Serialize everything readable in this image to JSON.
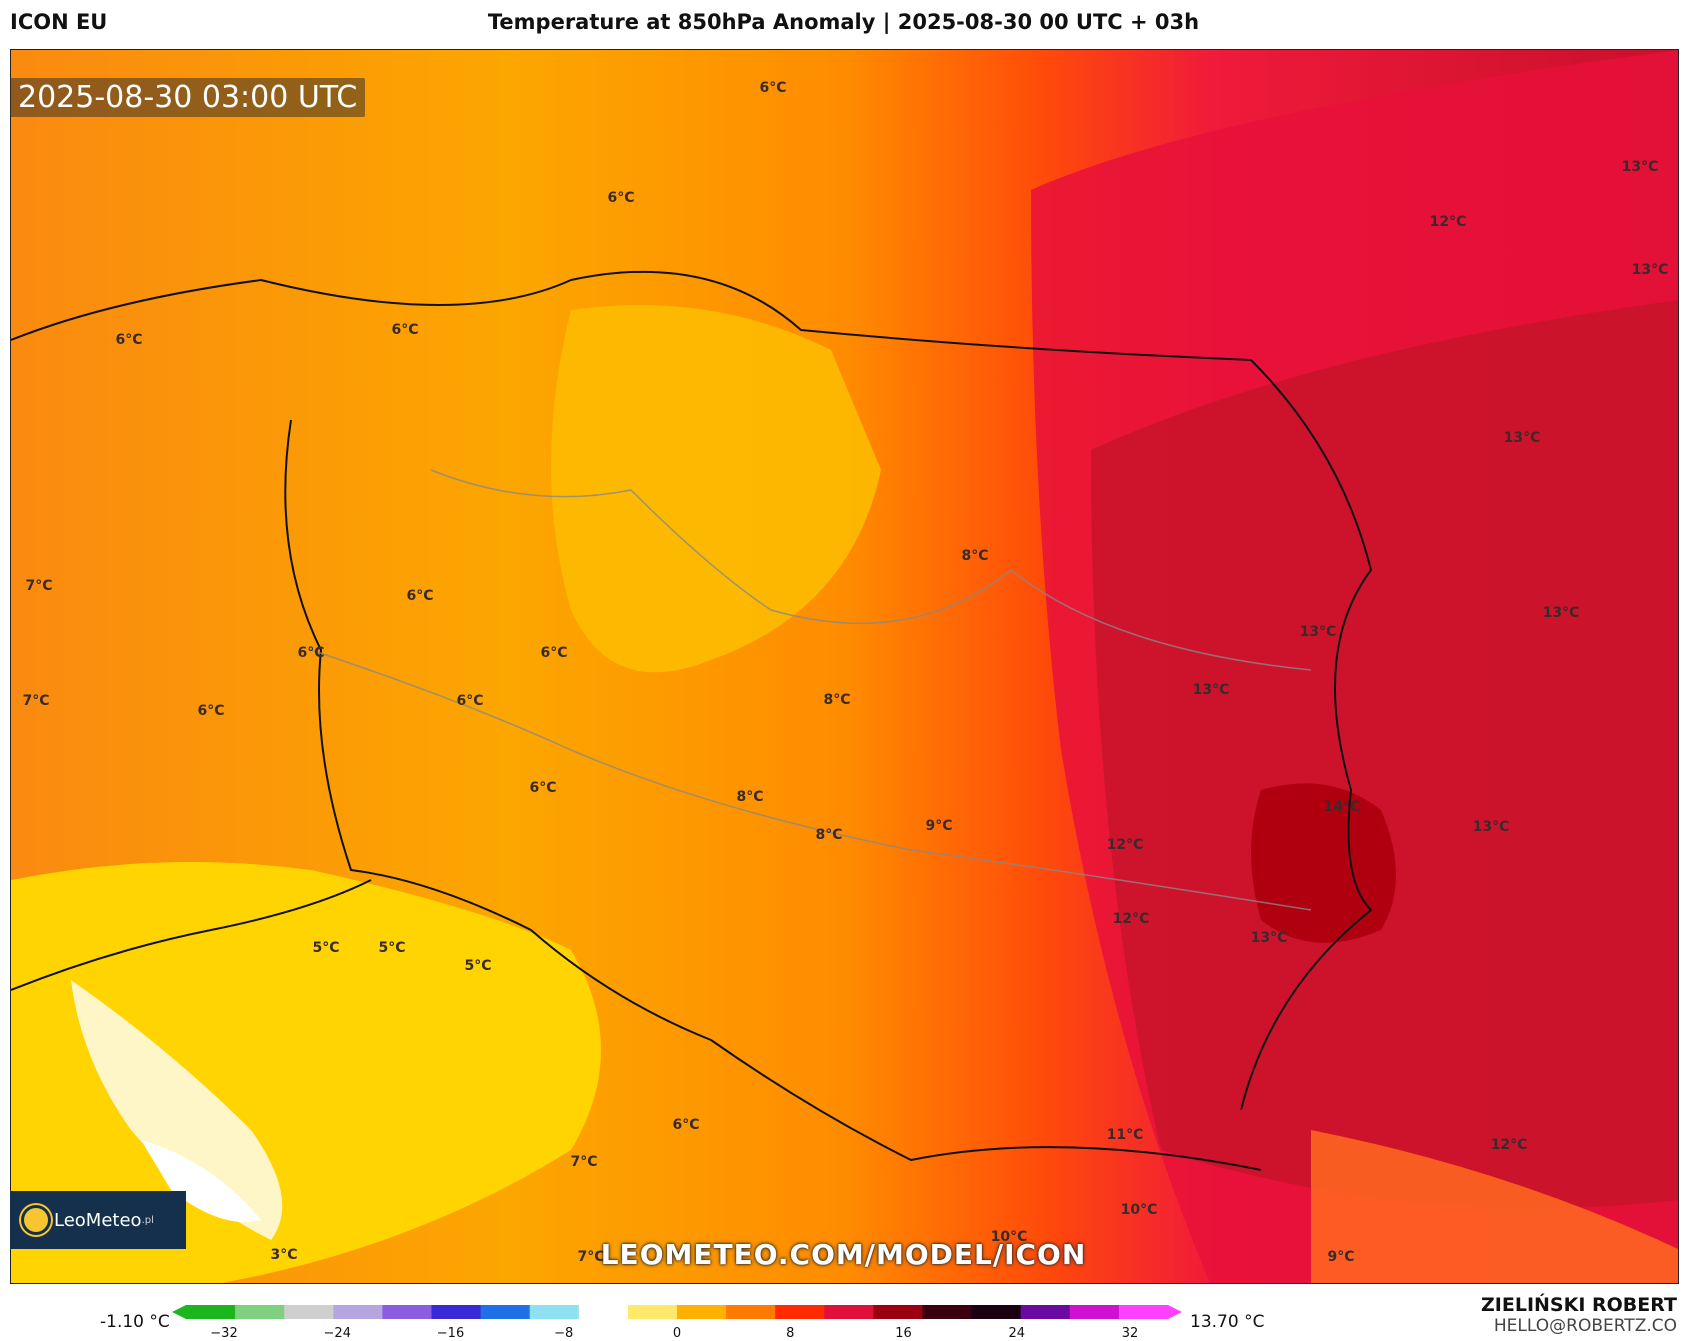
{
  "header": {
    "model": "ICON EU",
    "title": "Temperature at 850hPa Anomaly | 2025-08-30 00 UTC + 03h"
  },
  "map": {
    "timestamp": "2025-08-30 03:00 UTC",
    "watermark": "LEOMETEO.COM/MODEL/ICON",
    "logo_text": "LeoMeteo",
    "logo_suffix": ".pl",
    "labels": [
      "6°C",
      "6°C",
      "6°C",
      "6°C",
      "6°C",
      "6°C",
      "6°C",
      "6°C",
      "6°C",
      "6°C",
      "7°C",
      "7°C",
      "8°C",
      "8°C",
      "8°C",
      "8°C",
      "9°C",
      "12°C",
      "12°C",
      "12°C",
      "13°C",
      "13°C",
      "13°C",
      "13°C",
      "13°C",
      "13°C",
      "13°C",
      "13°C",
      "14°C",
      "5°C",
      "5°C",
      "5°C",
      "6°C",
      "7°C",
      "7°C",
      "3°C",
      "10°C",
      "10°C",
      "11°C",
      "9°C",
      "12°C"
    ]
  },
  "legend": {
    "min_label": "-1.10 °C",
    "max_label": "13.70 °C",
    "ticks": [
      "−32",
      "−24",
      "−16",
      "−8",
      "0",
      "8",
      "16",
      "24",
      "32"
    ],
    "colors": [
      "#1db51d",
      "#7fd07f",
      "#cfcfcf",
      "#b6a6e0",
      "#8c5de0",
      "#3a2ad6",
      "#1f6fe6",
      "#8fe0f0",
      "#ffffff",
      "#ffe86a",
      "#ffb000",
      "#ff7a00",
      "#ff2a00",
      "#e0103a",
      "#9a0010",
      "#3a0010",
      "#1a0010",
      "#6a0aa0",
      "#d010d0",
      "#ff40ff"
    ]
  },
  "credits": {
    "author": "ZIELIŃSKI ROBERT",
    "email": "HELLO@ROBERTZ.CO"
  }
}
